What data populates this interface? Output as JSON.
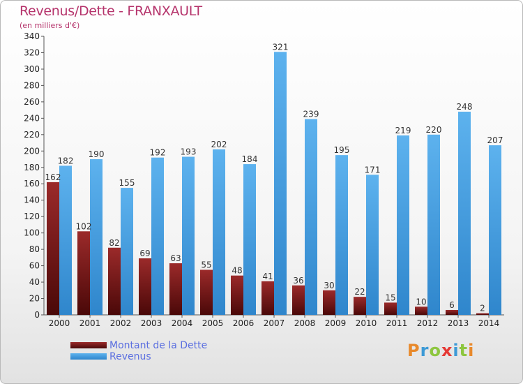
{
  "title": "Revenus/Dette - FRANXAULT",
  "subtitle": "(en milliers d'€)",
  "chart_data": {
    "type": "bar",
    "categories": [
      "2000",
      "2001",
      "2002",
      "2003",
      "2004",
      "2005",
      "2006",
      "2007",
      "2008",
      "2009",
      "2010",
      "2011",
      "2012",
      "2013",
      "2014"
    ],
    "series": [
      {
        "name": "Montant de la Dette",
        "values": [
          162,
          102,
          82,
          69,
          63,
          55,
          48,
          41,
          36,
          30,
          22,
          15,
          10,
          6,
          2
        ],
        "color": "#7a1a1a"
      },
      {
        "name": "Revenus",
        "values": [
          182,
          190,
          155,
          192,
          193,
          202,
          184,
          321,
          239,
          195,
          171,
          219,
          220,
          248,
          207
        ],
        "color": "#4aa3e6"
      }
    ],
    "ylim": [
      0,
      340
    ],
    "yticks": [
      0,
      20,
      40,
      60,
      80,
      100,
      120,
      140,
      160,
      180,
      200,
      220,
      240,
      260,
      280,
      300,
      320,
      340
    ],
    "grid": false,
    "legend": "bottom-left"
  },
  "logo": {
    "letters": [
      "P",
      "r",
      "o",
      "x",
      "i",
      "t",
      "i"
    ],
    "colors": [
      "#e8892b",
      "#3d9ad6",
      "#8dc63f",
      "#e53935",
      "#3d9ad6",
      "#8dc63f",
      "#e8892b"
    ]
  }
}
